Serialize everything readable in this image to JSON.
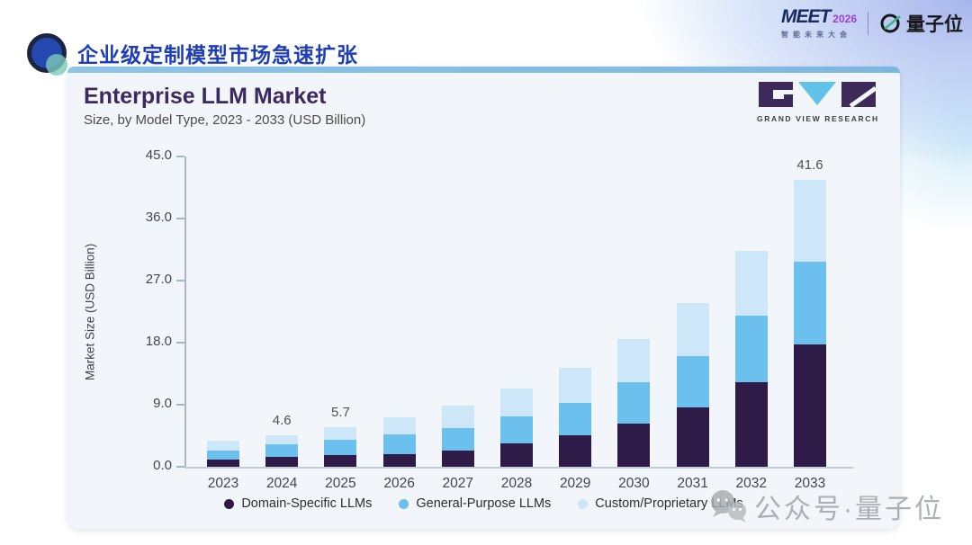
{
  "slide": {
    "title": "企业级定制模型市场急速扩张",
    "watermark": "公众号·量子位"
  },
  "logos": {
    "meet": "MEET",
    "meet_year": "2026",
    "meet_tagline": "智能未来大会",
    "qbit": "量子位"
  },
  "card": {
    "title": "Enterprise LLM Market",
    "subtitle": "Size, by Model Type, 2023 - 2033 (USD Billion)",
    "brand": "GRAND VIEW RESEARCH"
  },
  "icons": {
    "bullet": "blue-circle-with-teal-accent",
    "gvr_logo": "G-V-R-blocks",
    "qbit_logo": "Q-circle-with-green-slash",
    "wechat": "chat-bubbles"
  },
  "chart_data": {
    "type": "bar",
    "stacked": true,
    "title": "Enterprise LLM Market",
    "subtitle": "Size, by Model Type, 2023 - 2033 (USD Billion)",
    "ylabel": "Market Size (USD Billion)",
    "ylim": [
      0,
      45
    ],
    "yticks": [
      "0.0",
      "9.0",
      "18.0",
      "27.0",
      "36.0",
      "45.0"
    ],
    "grid": false,
    "legend_position": "bottom",
    "categories": [
      "2023",
      "2024",
      "2025",
      "2026",
      "2027",
      "2028",
      "2029",
      "2030",
      "2031",
      "2032",
      "2033"
    ],
    "series": [
      {
        "name": "Domain-Specific LLMs",
        "color": "#2e1b47",
        "values": [
          1.0,
          1.4,
          1.7,
          1.8,
          2.4,
          3.4,
          4.6,
          6.3,
          8.6,
          12.3,
          17.8
        ]
      },
      {
        "name": "General-Purpose LLMs",
        "color": "#6cc0ed",
        "values": [
          1.4,
          1.8,
          2.2,
          2.9,
          3.2,
          3.9,
          4.7,
          6.0,
          7.5,
          9.6,
          12.0
        ]
      },
      {
        "name": "Custom/Proprietary LLMs",
        "color": "#cde6f8",
        "values": [
          1.4,
          1.4,
          1.8,
          2.5,
          3.3,
          4.0,
          5.0,
          6.2,
          7.6,
          9.4,
          11.8
        ]
      }
    ],
    "totals": [
      3.8,
      4.6,
      5.7,
      7.2,
      8.9,
      11.3,
      14.3,
      18.5,
      23.7,
      31.3,
      41.6
    ],
    "bar_labels": [
      "",
      "4.6",
      "5.7",
      "",
      "",
      "",
      "",
      "",
      "",
      "",
      "41.6"
    ]
  }
}
